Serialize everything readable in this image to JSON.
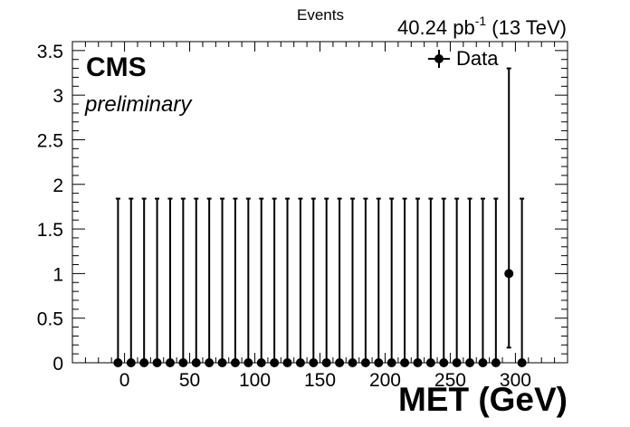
{
  "chart_data": {
    "type": "scatter",
    "title": "40.24 pb^-1 (13 TeV)",
    "title_parts": {
      "lumi": "40.24 pb",
      "sup": "-1",
      "energy": " (13 TeV)"
    },
    "xlabel": "MET (GeV)",
    "ylabel": "Events",
    "xlim": [
      -40,
      340
    ],
    "ylim": [
      0,
      3.6
    ],
    "xticks": [
      0,
      50,
      100,
      150,
      200,
      250,
      300
    ],
    "yticks": [
      0,
      0.5,
      1,
      1.5,
      2,
      2.5,
      3,
      3.5
    ],
    "xtick_labels": [
      "0",
      "50",
      "100",
      "150",
      "200",
      "250",
      "300"
    ],
    "ytick_labels": [
      "0",
      "0.5",
      "1",
      "1.5",
      "2",
      "2.5",
      "3",
      "3.5"
    ],
    "legend": {
      "placement": "top-right",
      "entries": [
        "Data"
      ]
    },
    "annotations": {
      "experiment": "CMS",
      "status": "preliminary"
    },
    "grid": false,
    "series": [
      {
        "name": "Data",
        "x": [
          -5,
          5,
          15,
          25,
          35,
          45,
          55,
          65,
          75,
          85,
          95,
          105,
          115,
          125,
          135,
          145,
          155,
          165,
          175,
          185,
          195,
          205,
          215,
          225,
          235,
          245,
          255,
          265,
          275,
          285,
          295,
          305
        ],
        "x_err": 2.5,
        "y": [
          0,
          0,
          0,
          0,
          0,
          0,
          0,
          0,
          0,
          0,
          0,
          0,
          0,
          0,
          0,
          0,
          0,
          0,
          0,
          0,
          0,
          0,
          0,
          0,
          0,
          0,
          0,
          0,
          0,
          0,
          1,
          0
        ],
        "y_err_up": [
          1.84,
          1.84,
          1.84,
          1.84,
          1.84,
          1.84,
          1.84,
          1.84,
          1.84,
          1.84,
          1.84,
          1.84,
          1.84,
          1.84,
          1.84,
          1.84,
          1.84,
          1.84,
          1.84,
          1.84,
          1.84,
          1.84,
          1.84,
          1.84,
          1.84,
          1.84,
          1.84,
          1.84,
          1.84,
          1.84,
          2.3,
          1.84
        ],
        "y_err_down": [
          0,
          0,
          0,
          0,
          0,
          0,
          0,
          0,
          0,
          0,
          0,
          0,
          0,
          0,
          0,
          0,
          0,
          0,
          0,
          0,
          0,
          0,
          0,
          0,
          0,
          0,
          0,
          0,
          0,
          0,
          0.83,
          0
        ]
      }
    ]
  }
}
